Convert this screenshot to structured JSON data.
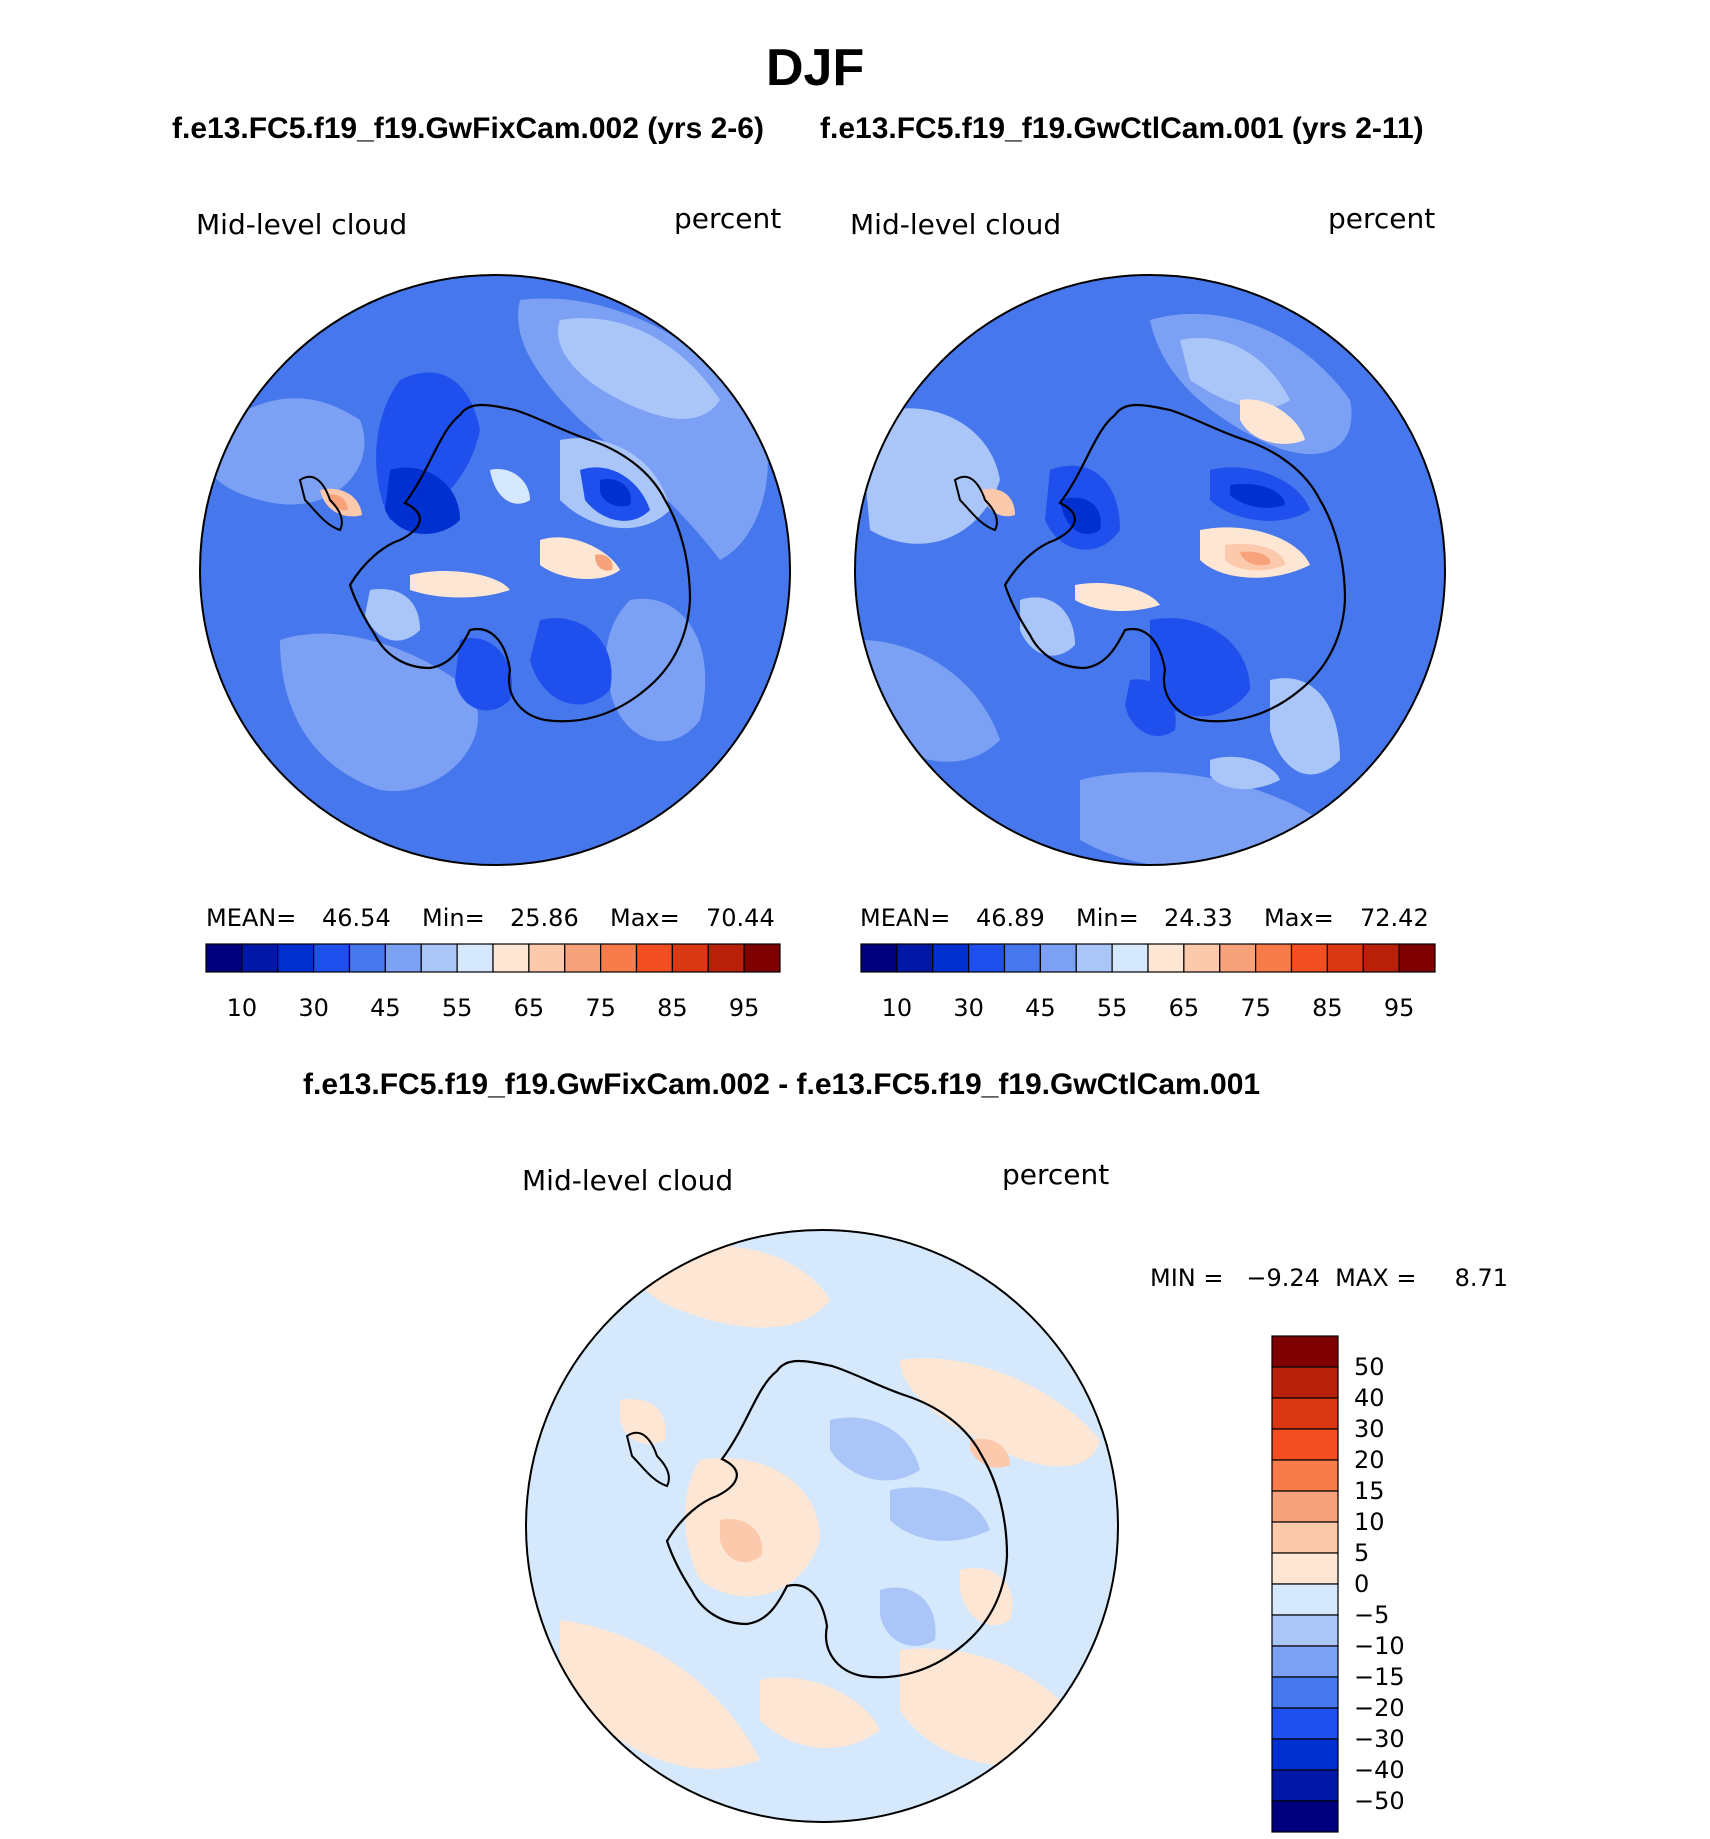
{
  "season_title": "DJF",
  "panel_left": {
    "case_title": "f.e13.FC5.f19_f19.GwFixCam.002 (yrs 2-6)",
    "variable": "Mid-level cloud",
    "units": "percent",
    "stats": {
      "mean_label": "MEAN=",
      "mean": "46.54",
      "min_label": "Min=",
      "min": "25.86",
      "max_label": "Max=",
      "max": "70.44"
    }
  },
  "panel_right": {
    "case_title": "f.e13.FC5.f19_f19.GwCtlCam.001 (yrs 2-11)",
    "variable": "Mid-level cloud",
    "units": "percent",
    "stats": {
      "mean_label": "MEAN=",
      "mean": "46.89",
      "min_label": "Min=",
      "min": "24.33",
      "max_label": "Max=",
      "max": "72.42"
    }
  },
  "panel_diff": {
    "title": "f.e13.FC5.f19_f19.GwFixCam.002 - f.e13.FC5.f19_f19.GwCtlCam.001",
    "variable": "Mid-level cloud",
    "units": "percent",
    "range_text": "MIN =   −9.24  MAX =     8.71"
  },
  "colorbar_abs": {
    "colors": [
      "#00007f",
      "#0018a8",
      "#0030d0",
      "#1f50ee",
      "#4677ec",
      "#7ba0f4",
      "#aac6f8",
      "#d6e8fc",
      "#fde6d4",
      "#fcc9ad",
      "#f8a27c",
      "#f77c4a",
      "#f24e22",
      "#d93812",
      "#b8200a",
      "#7e0000"
    ],
    "labels": [
      "10",
      "30",
      "45",
      "55",
      "65",
      "75",
      "85",
      "95"
    ]
  },
  "colorbar_diff": {
    "colors": [
      "#7e0000",
      "#b8200a",
      "#d93812",
      "#f24e22",
      "#f77c4a",
      "#f8a27c",
      "#fcc9ad",
      "#fde6d4",
      "#d6e8fc",
      "#aac6f8",
      "#7ba0f4",
      "#4677ec",
      "#1f50ee",
      "#0030d0",
      "#0018a8",
      "#00007f"
    ],
    "labels": [
      "50",
      "40",
      "30",
      "20",
      "15",
      "10",
      "5",
      "0",
      "−5",
      "−10",
      "−15",
      "−20",
      "−30",
      "−40",
      "−50"
    ]
  }
}
